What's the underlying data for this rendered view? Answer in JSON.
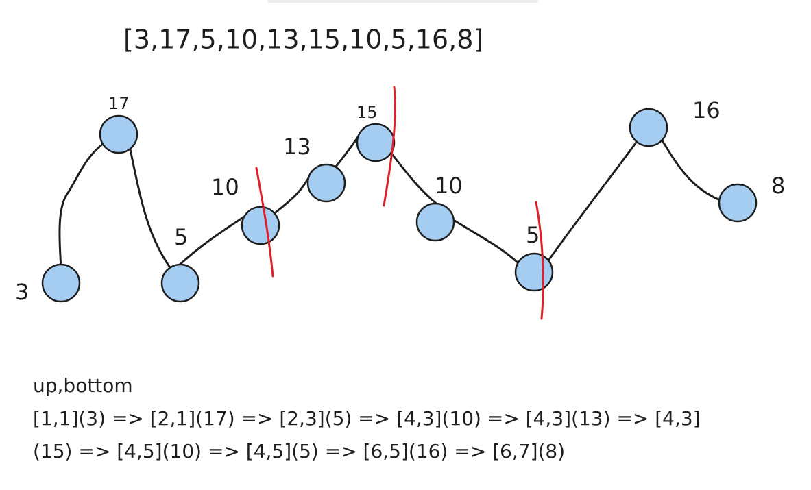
{
  "title": "[3,17,5,10,13,15,10,5,16,8]",
  "nodes": [
    {
      "label": "3"
    },
    {
      "label": "17"
    },
    {
      "label": "5"
    },
    {
      "label": "10"
    },
    {
      "label": "13"
    },
    {
      "label": "15"
    },
    {
      "label": "10"
    },
    {
      "label": "5"
    },
    {
      "label": "16"
    },
    {
      "label": "8"
    }
  ],
  "notes": {
    "heading": "up,bottom",
    "lines": [
      "[1,1](3) => [2,1](17) => [2,3](5) => [4,3](10) => [4,3](13) => [4,3]",
      "(15) =>  [4,5](10) => [4,5](5) => [6,5](16) => [6,7](8)"
    ]
  }
}
